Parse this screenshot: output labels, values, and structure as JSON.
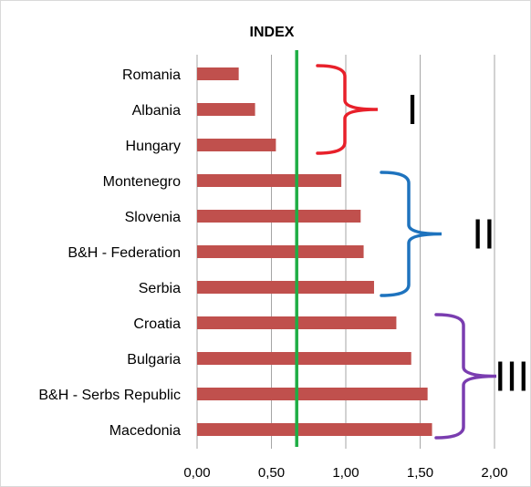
{
  "chart_data": {
    "type": "bar",
    "orientation": "horizontal",
    "title": "INDEX",
    "categories": [
      "Romania",
      "Albania",
      "Hungary",
      "Montenegro",
      "Slovenia",
      "B&H - Federation",
      "Serbia",
      "Croatia",
      "Bulgaria",
      "B&H - Serbs Republic",
      "Macedonia"
    ],
    "values": [
      0.28,
      0.39,
      0.53,
      0.97,
      1.1,
      1.12,
      1.19,
      1.34,
      1.44,
      1.55,
      1.58
    ],
    "xlim": [
      0,
      2
    ],
    "x_ticks": [
      "0,00",
      "0,50",
      "1,00",
      "1,50",
      "2,00"
    ],
    "x_tick_values": [
      0,
      0.5,
      1.0,
      1.5,
      2.0
    ],
    "grid": true,
    "bar_color": "#c0504d",
    "reference_line": {
      "value": 0.67,
      "color": "#1fae45"
    },
    "groups": [
      {
        "label": "I",
        "color": "#e8202a",
        "from": 0,
        "to": 2
      },
      {
        "label": "II",
        "color": "#1e73be",
        "from": 3,
        "to": 6
      },
      {
        "label": "III",
        "color": "#7a3db0",
        "from": 7,
        "to": 10
      }
    ]
  }
}
